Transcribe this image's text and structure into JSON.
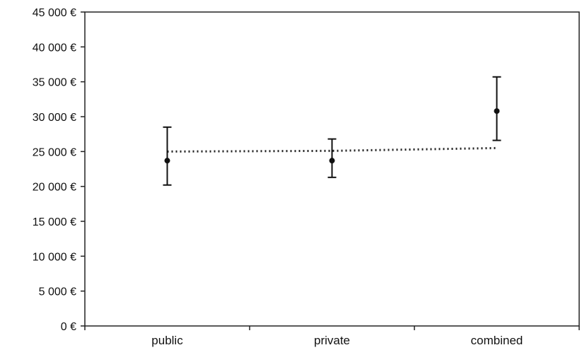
{
  "chart_data": {
    "type": "scatter",
    "title": "",
    "xlabel": "",
    "ylabel": "",
    "categories": [
      "public",
      "private",
      "combined"
    ],
    "ylim": [
      0,
      45000
    ],
    "yticks": [
      0,
      5000,
      10000,
      15000,
      20000,
      25000,
      30000,
      35000,
      40000,
      45000
    ],
    "ytick_labels": [
      "0 €",
      "5 000 €",
      "10 000 €",
      "15 000 €",
      "20 000 €",
      "25 000 €",
      "30 000 €",
      "35 000 €",
      "40 000 €",
      "45 000 €"
    ],
    "series": [
      {
        "values": [
          23700,
          23700,
          30800
        ],
        "error_low": [
          20200,
          21300,
          26600
        ],
        "error_high": [
          28500,
          26800,
          35700
        ]
      }
    ],
    "trend_line": {
      "style": "dotted",
      "values": [
        25000,
        25100,
        25500
      ]
    },
    "grid": false,
    "legend": "none"
  }
}
